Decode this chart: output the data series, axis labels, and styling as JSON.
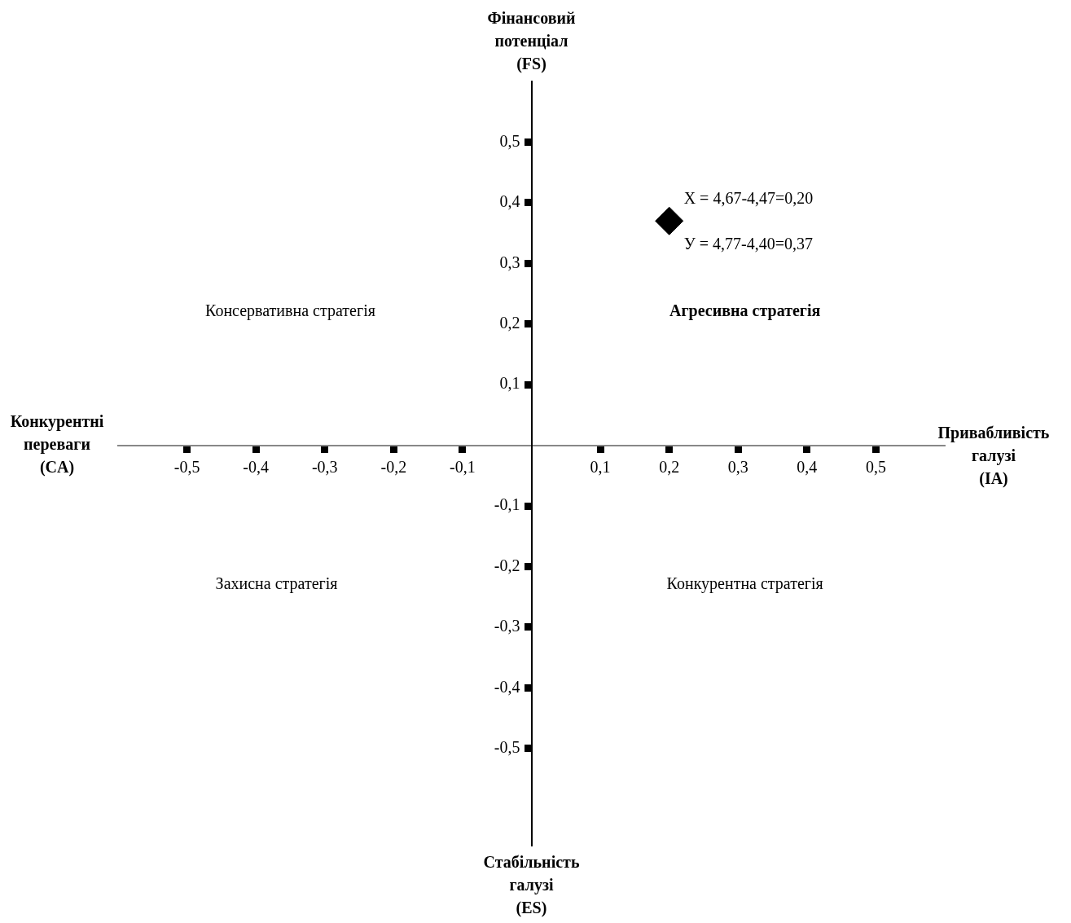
{
  "chart_data": {
    "type": "scatter",
    "xlabel": "Привабливість галузі (IA)",
    "ylabel": "Фінансовий потенціал (FS)",
    "x": [
      0.2
    ],
    "values": [
      0.37
    ],
    "color": "#000000",
    "marker": "diamond",
    "xlim": [
      -0.6,
      0.6
    ],
    "ylim": [
      -0.66,
      0.6
    ],
    "xticks": [
      {
        "value": -0.5,
        "label": "-0,5"
      },
      {
        "value": -0.4,
        "label": "-0,4"
      },
      {
        "value": -0.3,
        "label": "-0,3"
      },
      {
        "value": -0.2,
        "label": "-0,2"
      },
      {
        "value": -0.1,
        "label": "-0,1"
      },
      {
        "value": 0.1,
        "label": "0,1"
      },
      {
        "value": 0.2,
        "label": "0,2"
      },
      {
        "value": 0.3,
        "label": "0,3"
      },
      {
        "value": 0.4,
        "label": "0,4"
      },
      {
        "value": 0.5,
        "label": "0,5"
      }
    ],
    "yticks": [
      {
        "value": -0.5,
        "label": "-0,5"
      },
      {
        "value": -0.4,
        "label": "-0,4"
      },
      {
        "value": -0.3,
        "label": "-0,3"
      },
      {
        "value": -0.2,
        "label": "-0,2"
      },
      {
        "value": -0.1,
        "label": "-0,1"
      },
      {
        "value": 0.1,
        "label": "0,1"
      },
      {
        "value": 0.2,
        "label": "0,2"
      },
      {
        "value": 0.3,
        "label": "0,3"
      },
      {
        "value": 0.4,
        "label": "0,4"
      },
      {
        "value": 0.5,
        "label": "0,5"
      }
    ],
    "grid": false,
    "legend": false,
    "annotations": [
      "Конкурентні переваги (CA)",
      "Стабільність галузі (ES)",
      {
        "text": "Х = 4,67-4,47=0,20",
        "x": 0.2,
        "y": 0.37
      },
      {
        "text": "У = 4,77-4,40=0,37",
        "x": 0.2,
        "y": 0.37
      },
      "Консервативна стратегія",
      "Агресивна стратегія",
      "Захисна стратегія",
      "Конкурентна стратегія"
    ]
  }
}
